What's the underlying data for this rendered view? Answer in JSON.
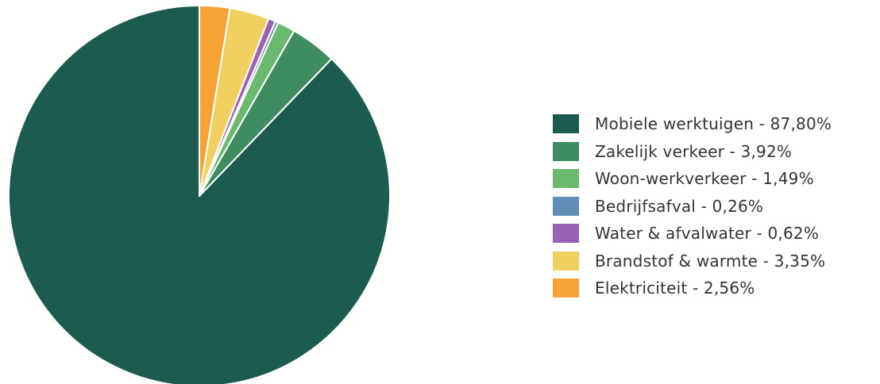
{
  "chart_data": {
    "type": "pie",
    "start": "top",
    "direction": "counterclockwise",
    "legend_position": "right",
    "slices": [
      {
        "label": "Mobiele werktuigen - 87,80%",
        "value": 87.8,
        "color": "#1c5b4f"
      },
      {
        "label": "Zakelijk verkeer - 3,92%",
        "value": 3.92,
        "color": "#3e8c5f"
      },
      {
        "label": "Woon-werkverkeer - 1,49%",
        "value": 1.49,
        "color": "#6ab96e"
      },
      {
        "label": "Bedrijfsafval - 0,26%",
        "value": 0.26,
        "color": "#5f8db5"
      },
      {
        "label": "Water & afvalwater - 0,62%",
        "value": 0.62,
        "color": "#9a62b0"
      },
      {
        "label": "Brandstof & warmte - 3,35%",
        "value": 3.35,
        "color": "#f0d060"
      },
      {
        "label": "Elektriciteit - 2,56%",
        "value": 2.56,
        "color": "#f5a236"
      }
    ]
  }
}
